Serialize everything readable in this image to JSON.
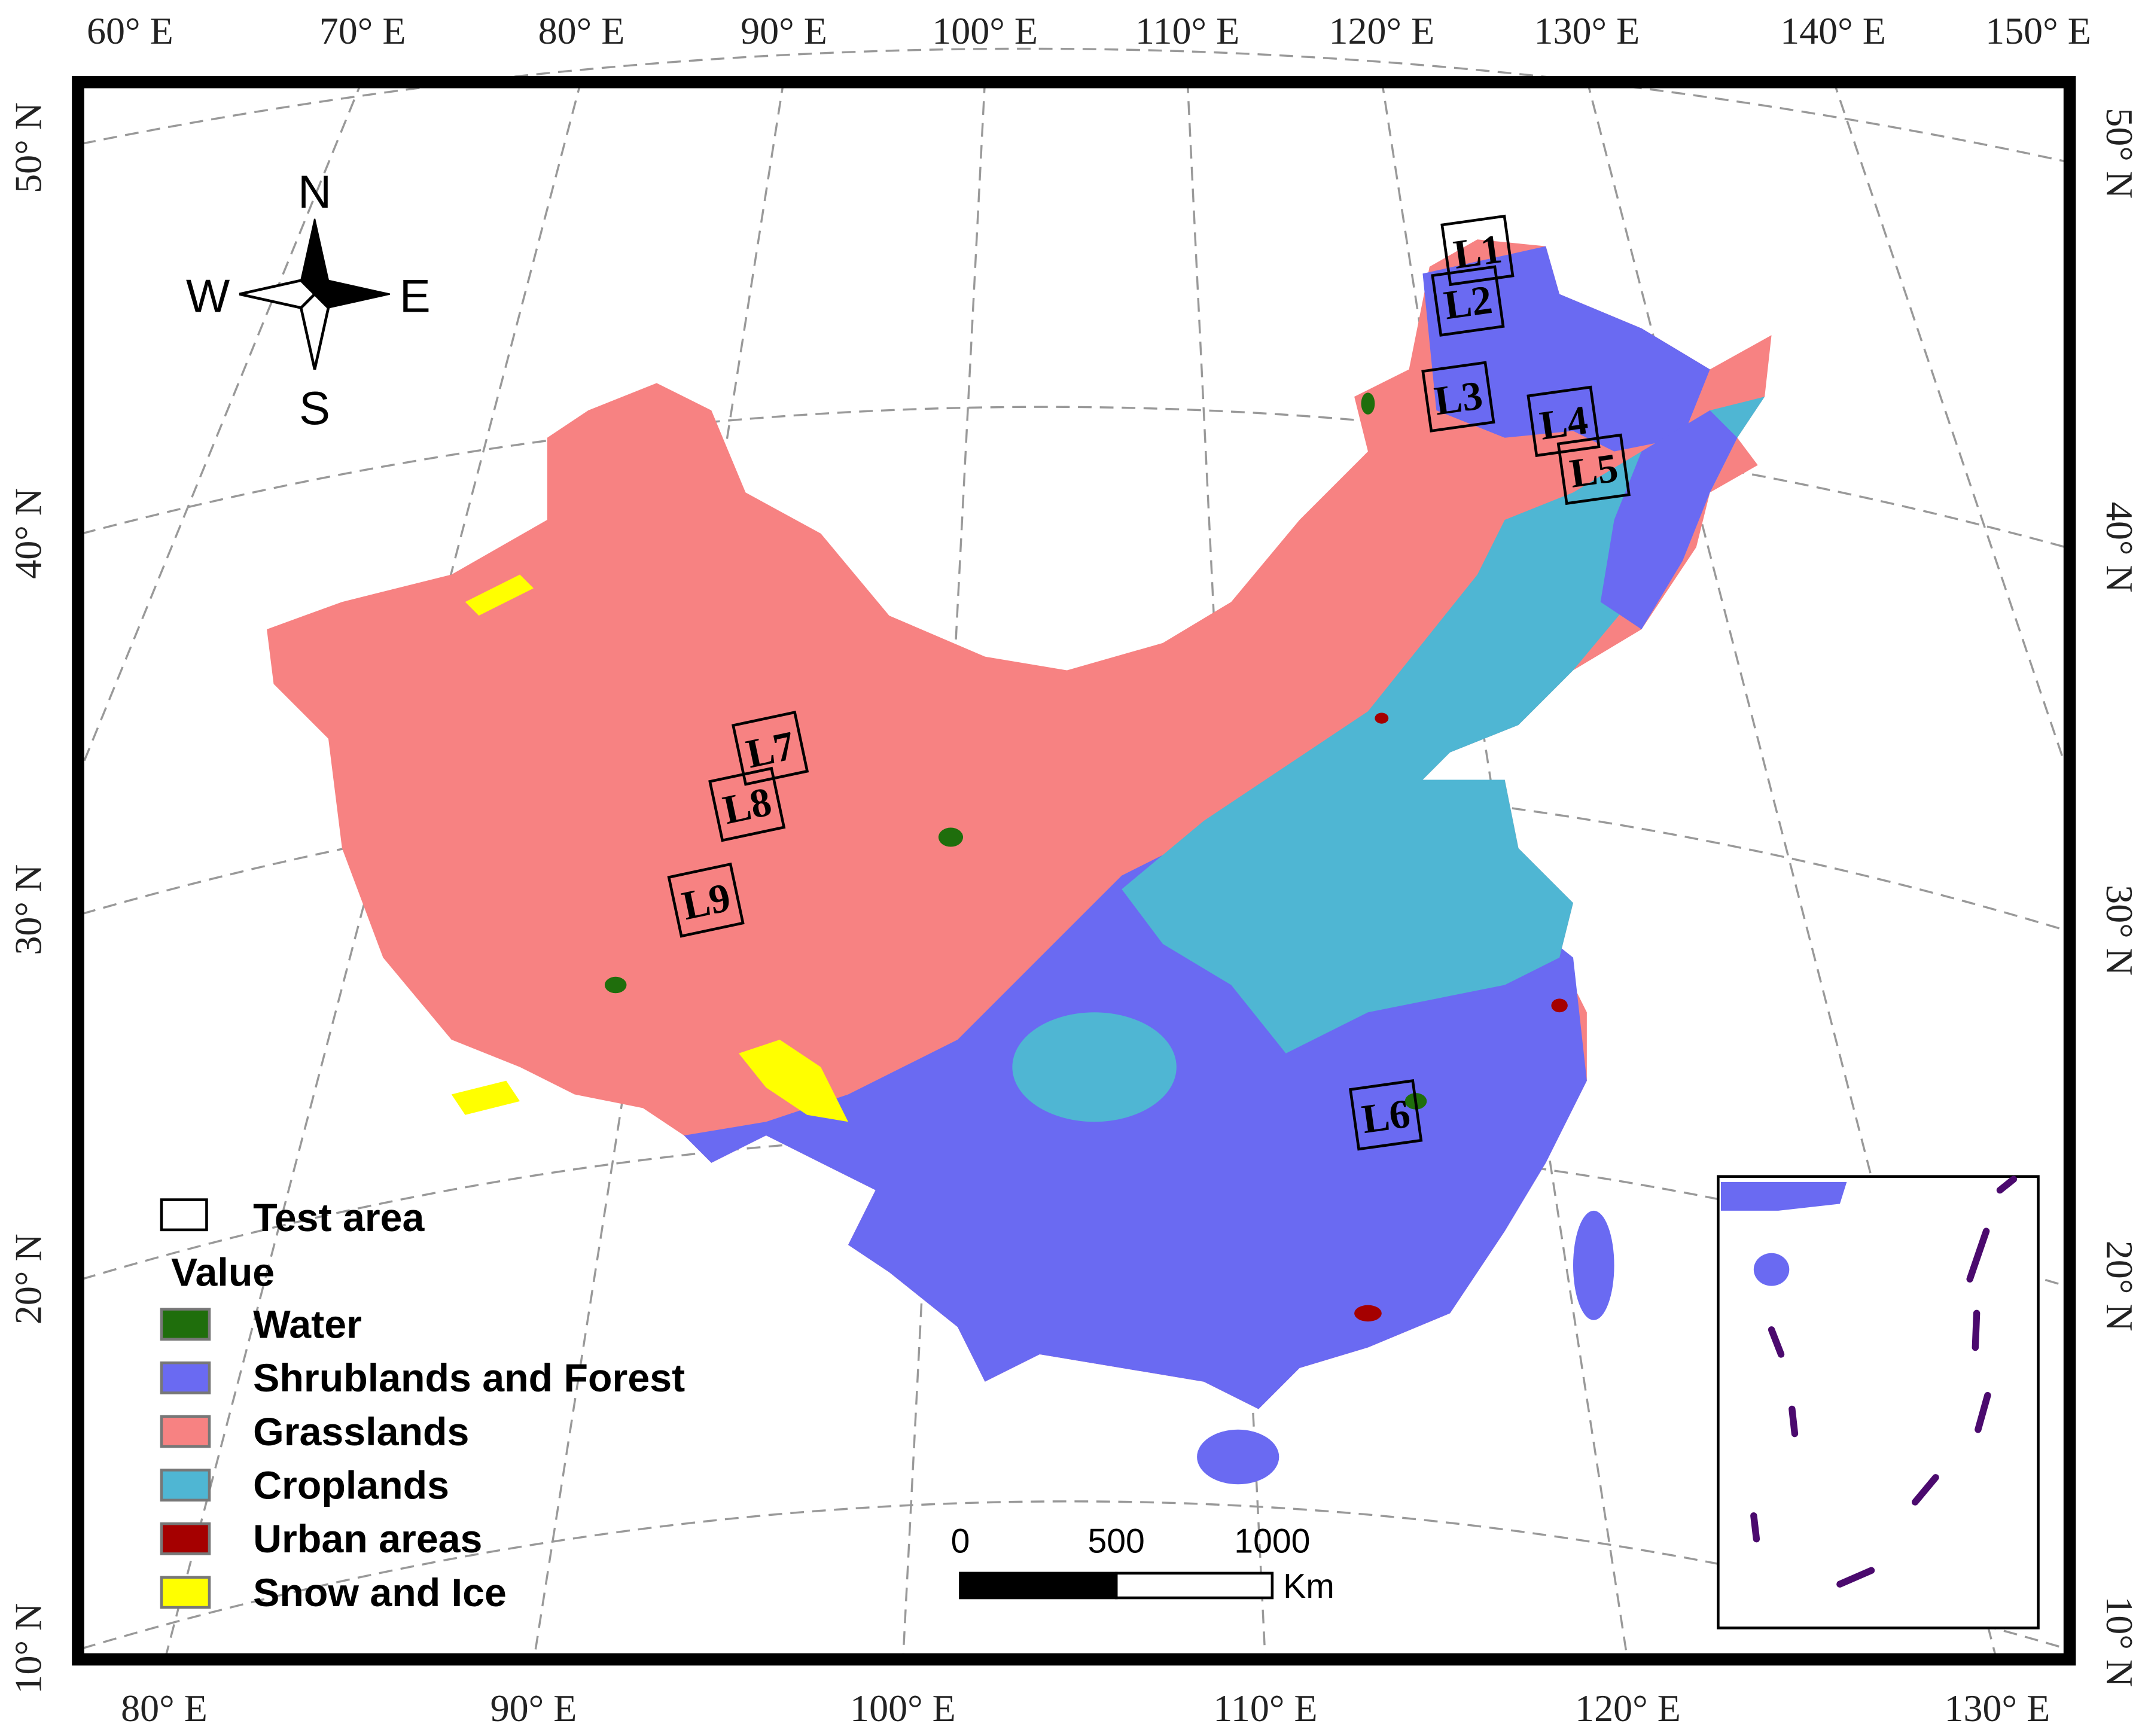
{
  "map": {
    "top_longitudes": [
      "60° E",
      "70° E",
      "80° E",
      "90° E",
      "100° E",
      "110° E",
      "120° E",
      "130° E",
      "140° E",
      "150° E"
    ],
    "bottom_longitudes": [
      "80° E",
      "90° E",
      "100° E",
      "110° E",
      "120° E",
      "130° E"
    ],
    "left_latitudes": [
      "50° N",
      "40° N",
      "30° N",
      "20° N",
      "10° N"
    ],
    "right_latitudes": [
      "50° N",
      "40° N",
      "30° N",
      "20° N",
      "10° N"
    ],
    "compass": {
      "north": "N",
      "south": "S",
      "east": "E",
      "west": "W"
    },
    "test_areas": [
      "L1",
      "L2",
      "L3",
      "L4",
      "L5",
      "L6",
      "L7",
      "L8",
      "L9"
    ],
    "legend": {
      "test_area": "Test area",
      "title": "Value",
      "items": [
        {
          "label": "Water",
          "color": "#1f6e0c"
        },
        {
          "label": "Shrublands and Forest",
          "color": "#6a6af2"
        },
        {
          "label": "Grasslands",
          "color": "#f78282"
        },
        {
          "label": "Croplands",
          "color": "#4fb6d3"
        },
        {
          "label": "Urban areas",
          "color": "#a50000"
        },
        {
          "label": "Snow and Ice",
          "color": "#ffff00"
        }
      ]
    },
    "scale_bar": {
      "ticks": [
        0,
        500,
        1000
      ],
      "unit": "Km"
    }
  }
}
